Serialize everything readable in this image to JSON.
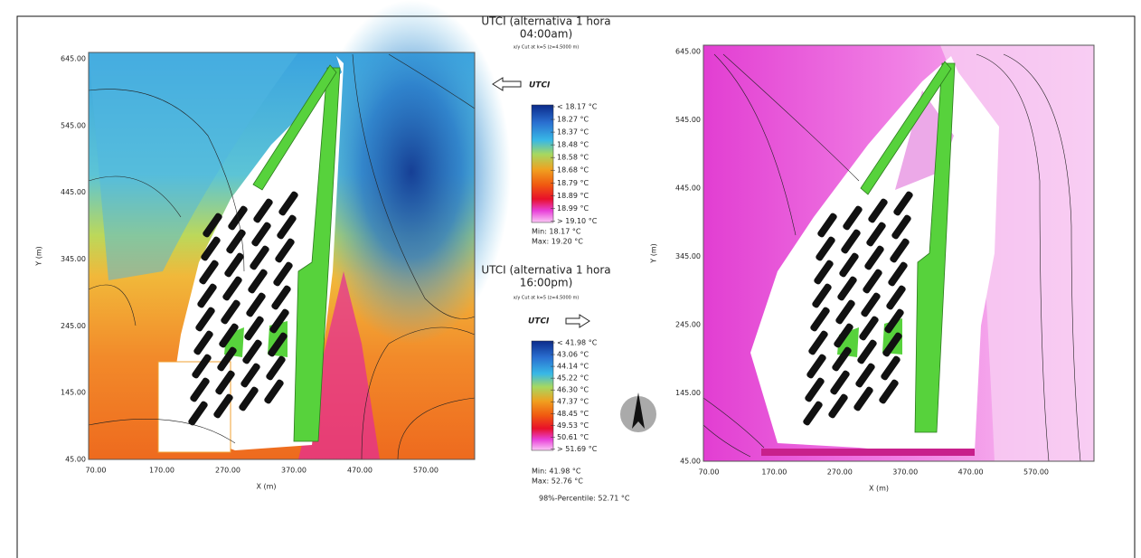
{
  "left_map": {
    "yticks": [
      "645.00",
      "545.00",
      "445.00",
      "345.00",
      "245.00",
      "145.00",
      "45.00"
    ],
    "xticks": [
      "70.00",
      "170.00",
      "270.00",
      "370.00",
      "470.00",
      "570.00"
    ],
    "x_label": "X (m)",
    "y_label": "Y (m)"
  },
  "right_map": {
    "yticks": [
      "645.00",
      "545.00",
      "445.00",
      "345.00",
      "245.00",
      "145.00",
      "45.00"
    ],
    "xticks": [
      "70.00",
      "170.00",
      "270.00",
      "370.00",
      "470.00",
      "570.00"
    ],
    "x_label": "X (m)",
    "y_label": "Y (m)"
  },
  "legend_top": {
    "title_lines": [
      "UTCI (alternativa 1 hora",
      "04:00am)"
    ],
    "cut": "x/y Cut at k=5 (z=4.5000 m)",
    "name": "UTCI",
    "labels": [
      "< 18.17 °C",
      "18.27 °C",
      "18.37 °C",
      "18.48 °C",
      "18.58 °C",
      "18.68 °C",
      "18.79 °C",
      "18.89 °C",
      "18.99 °C",
      "> 19.10 °C"
    ],
    "min": "Min: 18.17 °C",
    "max": "Max: 19.20 °C"
  },
  "legend_bottom": {
    "title_lines": [
      "UTCI (alternativa 1 hora",
      "16:00pm)"
    ],
    "cut": "x/y Cut at k=5 (z=4.5000 m)",
    "name": "UTCI",
    "labels": [
      "< 41.98 °C",
      "43.06 °C",
      "44.14 °C",
      "45.22 °C",
      "46.30 °C",
      "47.37 °C",
      "48.45 °C",
      "49.53 °C",
      "50.61 °C",
      "> 51.69 °C"
    ],
    "min": "Min: 41.98 °C",
    "max": "Max: 52.76 °C",
    "percentile": "98%-Percentile: 52.71 °C"
  }
}
